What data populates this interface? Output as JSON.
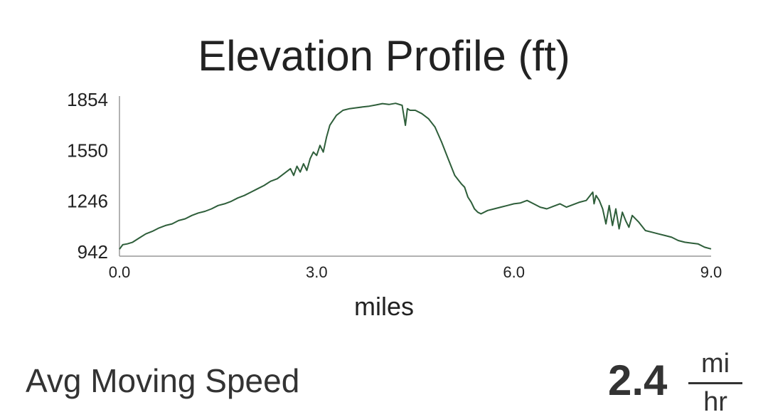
{
  "chart_data": {
    "type": "line",
    "title": "Elevation Profile (ft)",
    "xlabel": "miles",
    "ylabel": "",
    "xlim": [
      0,
      9
    ],
    "ylim": [
      942,
      1854
    ],
    "x_ticks": [
      "0.0",
      "3.0",
      "6.0",
      "9.0"
    ],
    "y_ticks": [
      "942",
      "1246",
      "1550",
      "1854"
    ],
    "grid": false,
    "line_color": "#2e5e3a",
    "series": [
      {
        "x": [
          0.0,
          0.05,
          0.12,
          0.2,
          0.3,
          0.4,
          0.5,
          0.6,
          0.7,
          0.8,
          0.9,
          1.0,
          1.1,
          1.2,
          1.3,
          1.4,
          1.5,
          1.6,
          1.7,
          1.8,
          1.9,
          2.0,
          2.1,
          2.2,
          2.3,
          2.4,
          2.5,
          2.6,
          2.65,
          2.7,
          2.75,
          2.8,
          2.85,
          2.9,
          2.95,
          3.0,
          3.05,
          3.1,
          3.15,
          3.2,
          3.3,
          3.4,
          3.5,
          3.6,
          3.7,
          3.8,
          3.9,
          4.0,
          4.1,
          4.2,
          4.3,
          4.35,
          4.38,
          4.42,
          4.5,
          4.6,
          4.7,
          4.8,
          4.9,
          5.0,
          5.1,
          5.2,
          5.25,
          5.3,
          5.35,
          5.4,
          5.45,
          5.5,
          5.6,
          5.7,
          5.8,
          5.9,
          6.0,
          6.1,
          6.2,
          6.3,
          6.4,
          6.5,
          6.6,
          6.7,
          6.8,
          6.9,
          7.0,
          7.1,
          7.2,
          7.22,
          7.25,
          7.3,
          7.35,
          7.4,
          7.45,
          7.5,
          7.55,
          7.6,
          7.65,
          7.7,
          7.75,
          7.8,
          7.9,
          8.0,
          8.1,
          8.2,
          8.3,
          8.4,
          8.5,
          8.6,
          8.7,
          8.8,
          8.9,
          9.0
        ],
        "y": [
          958,
          985,
          990,
          1000,
          1025,
          1050,
          1065,
          1085,
          1100,
          1110,
          1130,
          1140,
          1160,
          1175,
          1185,
          1200,
          1220,
          1230,
          1245,
          1265,
          1280,
          1300,
          1320,
          1340,
          1365,
          1380,
          1410,
          1440,
          1400,
          1455,
          1420,
          1470,
          1430,
          1500,
          1540,
          1520,
          1580,
          1540,
          1630,
          1700,
          1760,
          1790,
          1800,
          1805,
          1810,
          1815,
          1822,
          1830,
          1825,
          1832,
          1820,
          1700,
          1800,
          1790,
          1790,
          1770,
          1740,
          1690,
          1600,
          1500,
          1400,
          1350,
          1330,
          1270,
          1240,
          1200,
          1180,
          1170,
          1190,
          1200,
          1210,
          1220,
          1230,
          1235,
          1250,
          1230,
          1210,
          1200,
          1215,
          1230,
          1210,
          1225,
          1240,
          1250,
          1300,
          1230,
          1280,
          1250,
          1200,
          1110,
          1220,
          1100,
          1200,
          1080,
          1180,
          1130,
          1090,
          1160,
          1120,
          1070,
          1060,
          1050,
          1040,
          1030,
          1010,
          1000,
          995,
          990,
          970,
          960
        ]
      }
    ]
  },
  "stats": {
    "label": "Avg Moving Speed",
    "value": "2.4",
    "unit_numerator": "mi",
    "unit_denominator": "hr"
  }
}
